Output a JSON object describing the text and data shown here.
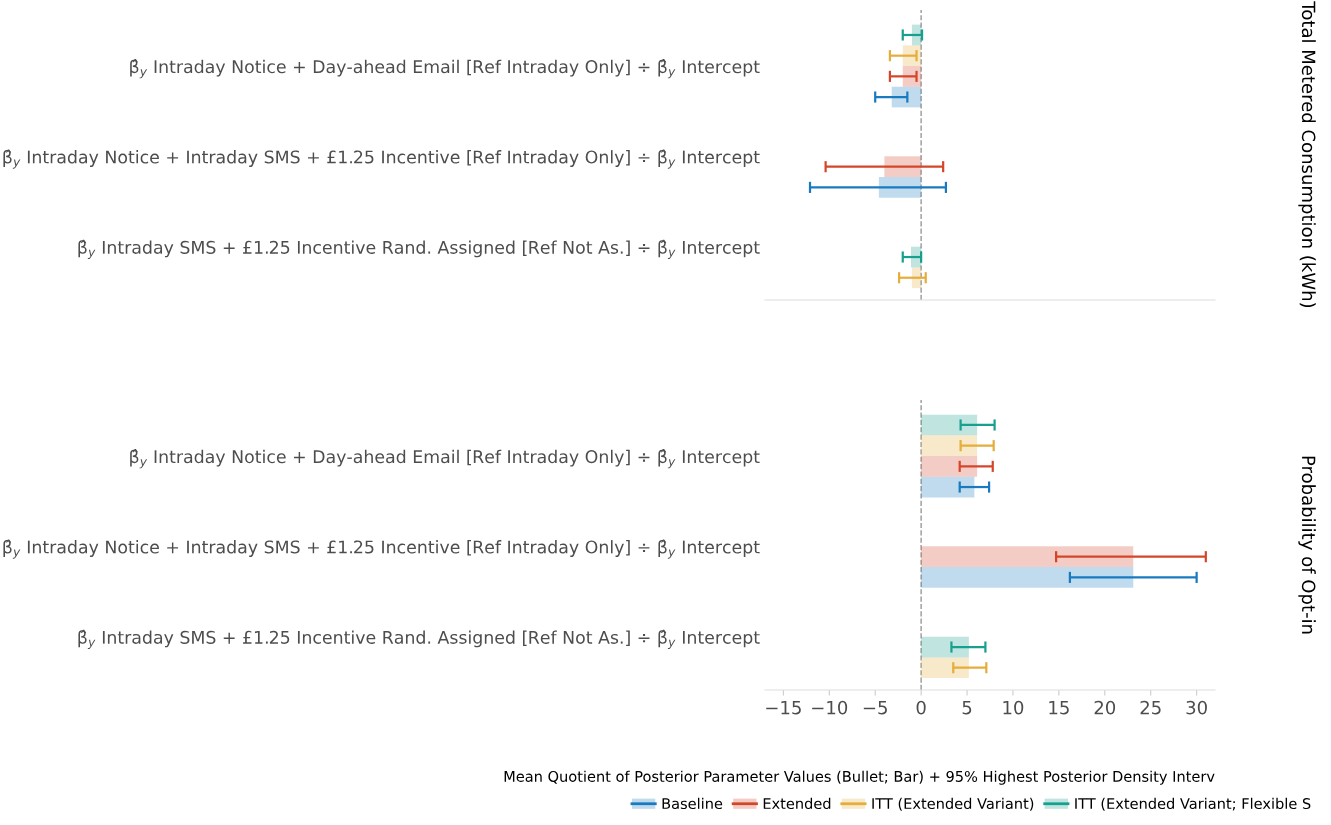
{
  "chart_data": [
    {
      "type": "bar",
      "orientation": "horizontal",
      "ylabel": "Total Metered Consumption (kWh)",
      "categories": [
        "β̂$_{y}$ Intraday Notice + Day-ahead Email [Ref Intraday Only] ÷ β̂$_{y}$ Intercept",
        "β̂$_{y}$ Intraday Notice + Intraday SMS + £1.25 Incentive [Ref Intraday Only] ÷ β̂$_{y}$ Intercept",
        "β̂$_{y}$ Intraday SMS + £1.25 Incentive Rand. Assigned [Ref Not As.] ÷ β̂$_{y}$ Intercept"
      ],
      "series": [
        {
          "color": "#17a08e",
          "values": [
            -1.0,
            null,
            -1.1
          ],
          "errors": [
            [
              -2.0,
              0.1
            ],
            null,
            [
              -2.0,
              0.0
            ]
          ]
        },
        {
          "color": "#e5ad3a",
          "values": [
            -2.0,
            null,
            -1.0
          ],
          "errors": [
            [
              -3.4,
              -0.5
            ],
            null,
            [
              -2.4,
              0.5
            ]
          ]
        },
        {
          "color": "#d4462a",
          "values": [
            -2.0,
            -4.0,
            null
          ],
          "errors": [
            [
              -3.4,
              -0.5
            ],
            [
              -10.4,
              2.4
            ],
            null
          ]
        },
        {
          "color": "#1a7abf",
          "values": [
            -3.2,
            -4.6,
            null
          ],
          "errors": [
            [
              -5.0,
              -1.5
            ],
            [
              -12.1,
              2.7
            ],
            null
          ]
        }
      ],
      "xlim": [
        -17,
        32
      ],
      "xticks": [
        -15,
        -10,
        -5,
        0,
        5,
        10,
        15,
        20,
        25,
        30
      ],
      "tick_labels": "y",
      "ref_lines": [
        {
          "axis": "x",
          "value": 0,
          "color": "#999999",
          "line_style": "dashed"
        }
      ]
    },
    {
      "type": "bar",
      "orientation": "horizontal",
      "ylabel": "Probability of Opt-in",
      "xlabel": "Mean Quotient of Posterior Parameter Values (Bullet; Bar) + 95% Highest Posterior Density Interv",
      "categories": [
        "β̂$_{y}$ Intraday Notice + Day-ahead Email [Ref Intraday Only] ÷ β̂$_{y}$ Intercept",
        "β̂$_{y}$ Intraday Notice + Intraday SMS + £1.25 Incentive [Ref Intraday Only] ÷ β̂$_{y}$ Intercept",
        "β̂$_{y}$ Intraday SMS + £1.25 Incentive Rand. Assigned [Ref Not As.] ÷ β̂$_{y}$ Intercept"
      ],
      "series": [
        {
          "name": "ITT (Extended Variant; Flexible S",
          "color": "#17a08e",
          "values": [
            6.1,
            null,
            5.2
          ],
          "errors": [
            [
              4.3,
              8.0
            ],
            null,
            [
              3.3,
              7.0
            ]
          ]
        },
        {
          "name": "ITT (Extended Variant)",
          "color": "#e5ad3a",
          "values": [
            6.1,
            null,
            5.2
          ],
          "errors": [
            [
              4.3,
              7.9
            ],
            null,
            [
              3.5,
              7.1
            ]
          ]
        },
        {
          "name": "Extended",
          "color": "#d4462a",
          "values": [
            6.1,
            23.1,
            null
          ],
          "errors": [
            [
              4.2,
              7.8
            ],
            [
              14.7,
              31.0
            ],
            null
          ]
        },
        {
          "name": "Baseline",
          "color": "#1a7abf",
          "values": [
            5.8,
            23.1,
            null
          ],
          "errors": [
            [
              4.2,
              7.4
            ],
            [
              16.2,
              30.0
            ],
            null
          ]
        }
      ],
      "xlim": [
        -17,
        32
      ],
      "xticks": [
        -15,
        -10,
        -5,
        0,
        5,
        10,
        15,
        20,
        25,
        30
      ],
      "legend": "bottom",
      "ref_lines": [
        {
          "axis": "x",
          "value": 0,
          "color": "#999999",
          "line_style": "dashed"
        }
      ]
    }
  ]
}
